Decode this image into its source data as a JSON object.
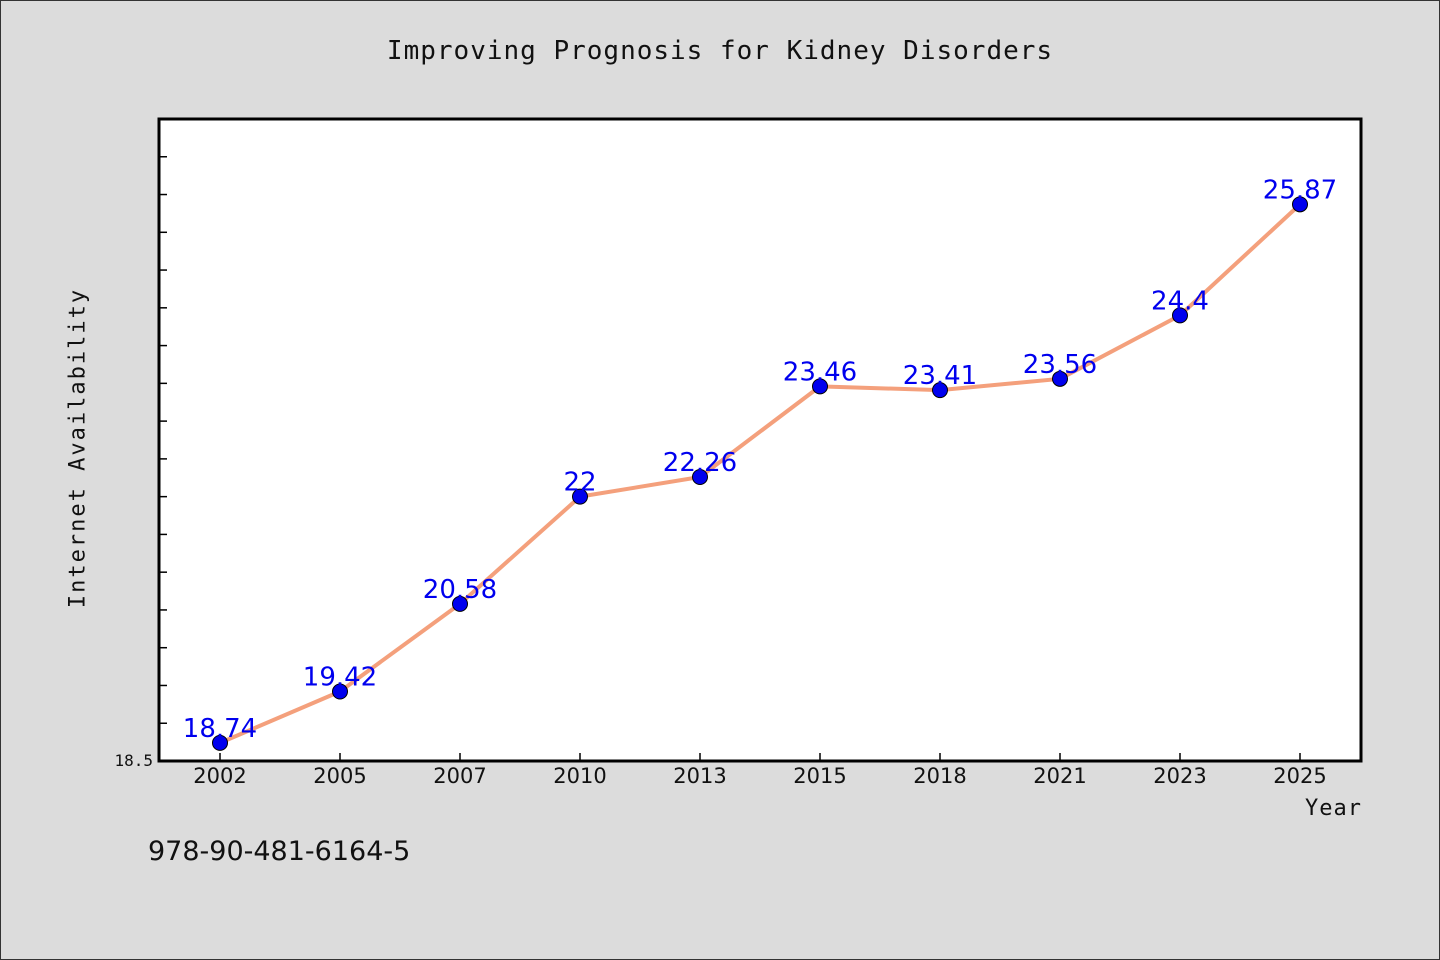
{
  "page": {
    "footer_code": "978-90-481-6164-5"
  },
  "colors": {
    "background": "#dcdcdc",
    "plot_background": "#ffffff",
    "line": "#f4a07c",
    "marker": "#0000ee",
    "data_label": "#0000ee"
  },
  "chart_data": {
    "type": "line",
    "title": "Improving Prognosis for Kidney Disorders",
    "xlabel": "Year",
    "ylabel": "Internet Availability",
    "categories": [
      "2002",
      "2005",
      "2007",
      "2010",
      "2013",
      "2015",
      "2018",
      "2021",
      "2023",
      "2025"
    ],
    "series": [
      {
        "values": [
          18.74,
          19.42,
          20.58,
          22,
          22.26,
          23.46,
          23.41,
          23.56,
          24.4,
          25.87
        ],
        "labels": [
          "18.74",
          "19.42",
          "20.58",
          "22",
          "22.26",
          "23.46",
          "23.41",
          "23.56",
          "24.4",
          "25.87"
        ]
      }
    ],
    "ylim": [
      18.5,
      27
    ],
    "y_tick_labels": [
      "18.5"
    ],
    "grid": false,
    "legend": "none",
    "markers": "circle",
    "data_labels": true
  }
}
